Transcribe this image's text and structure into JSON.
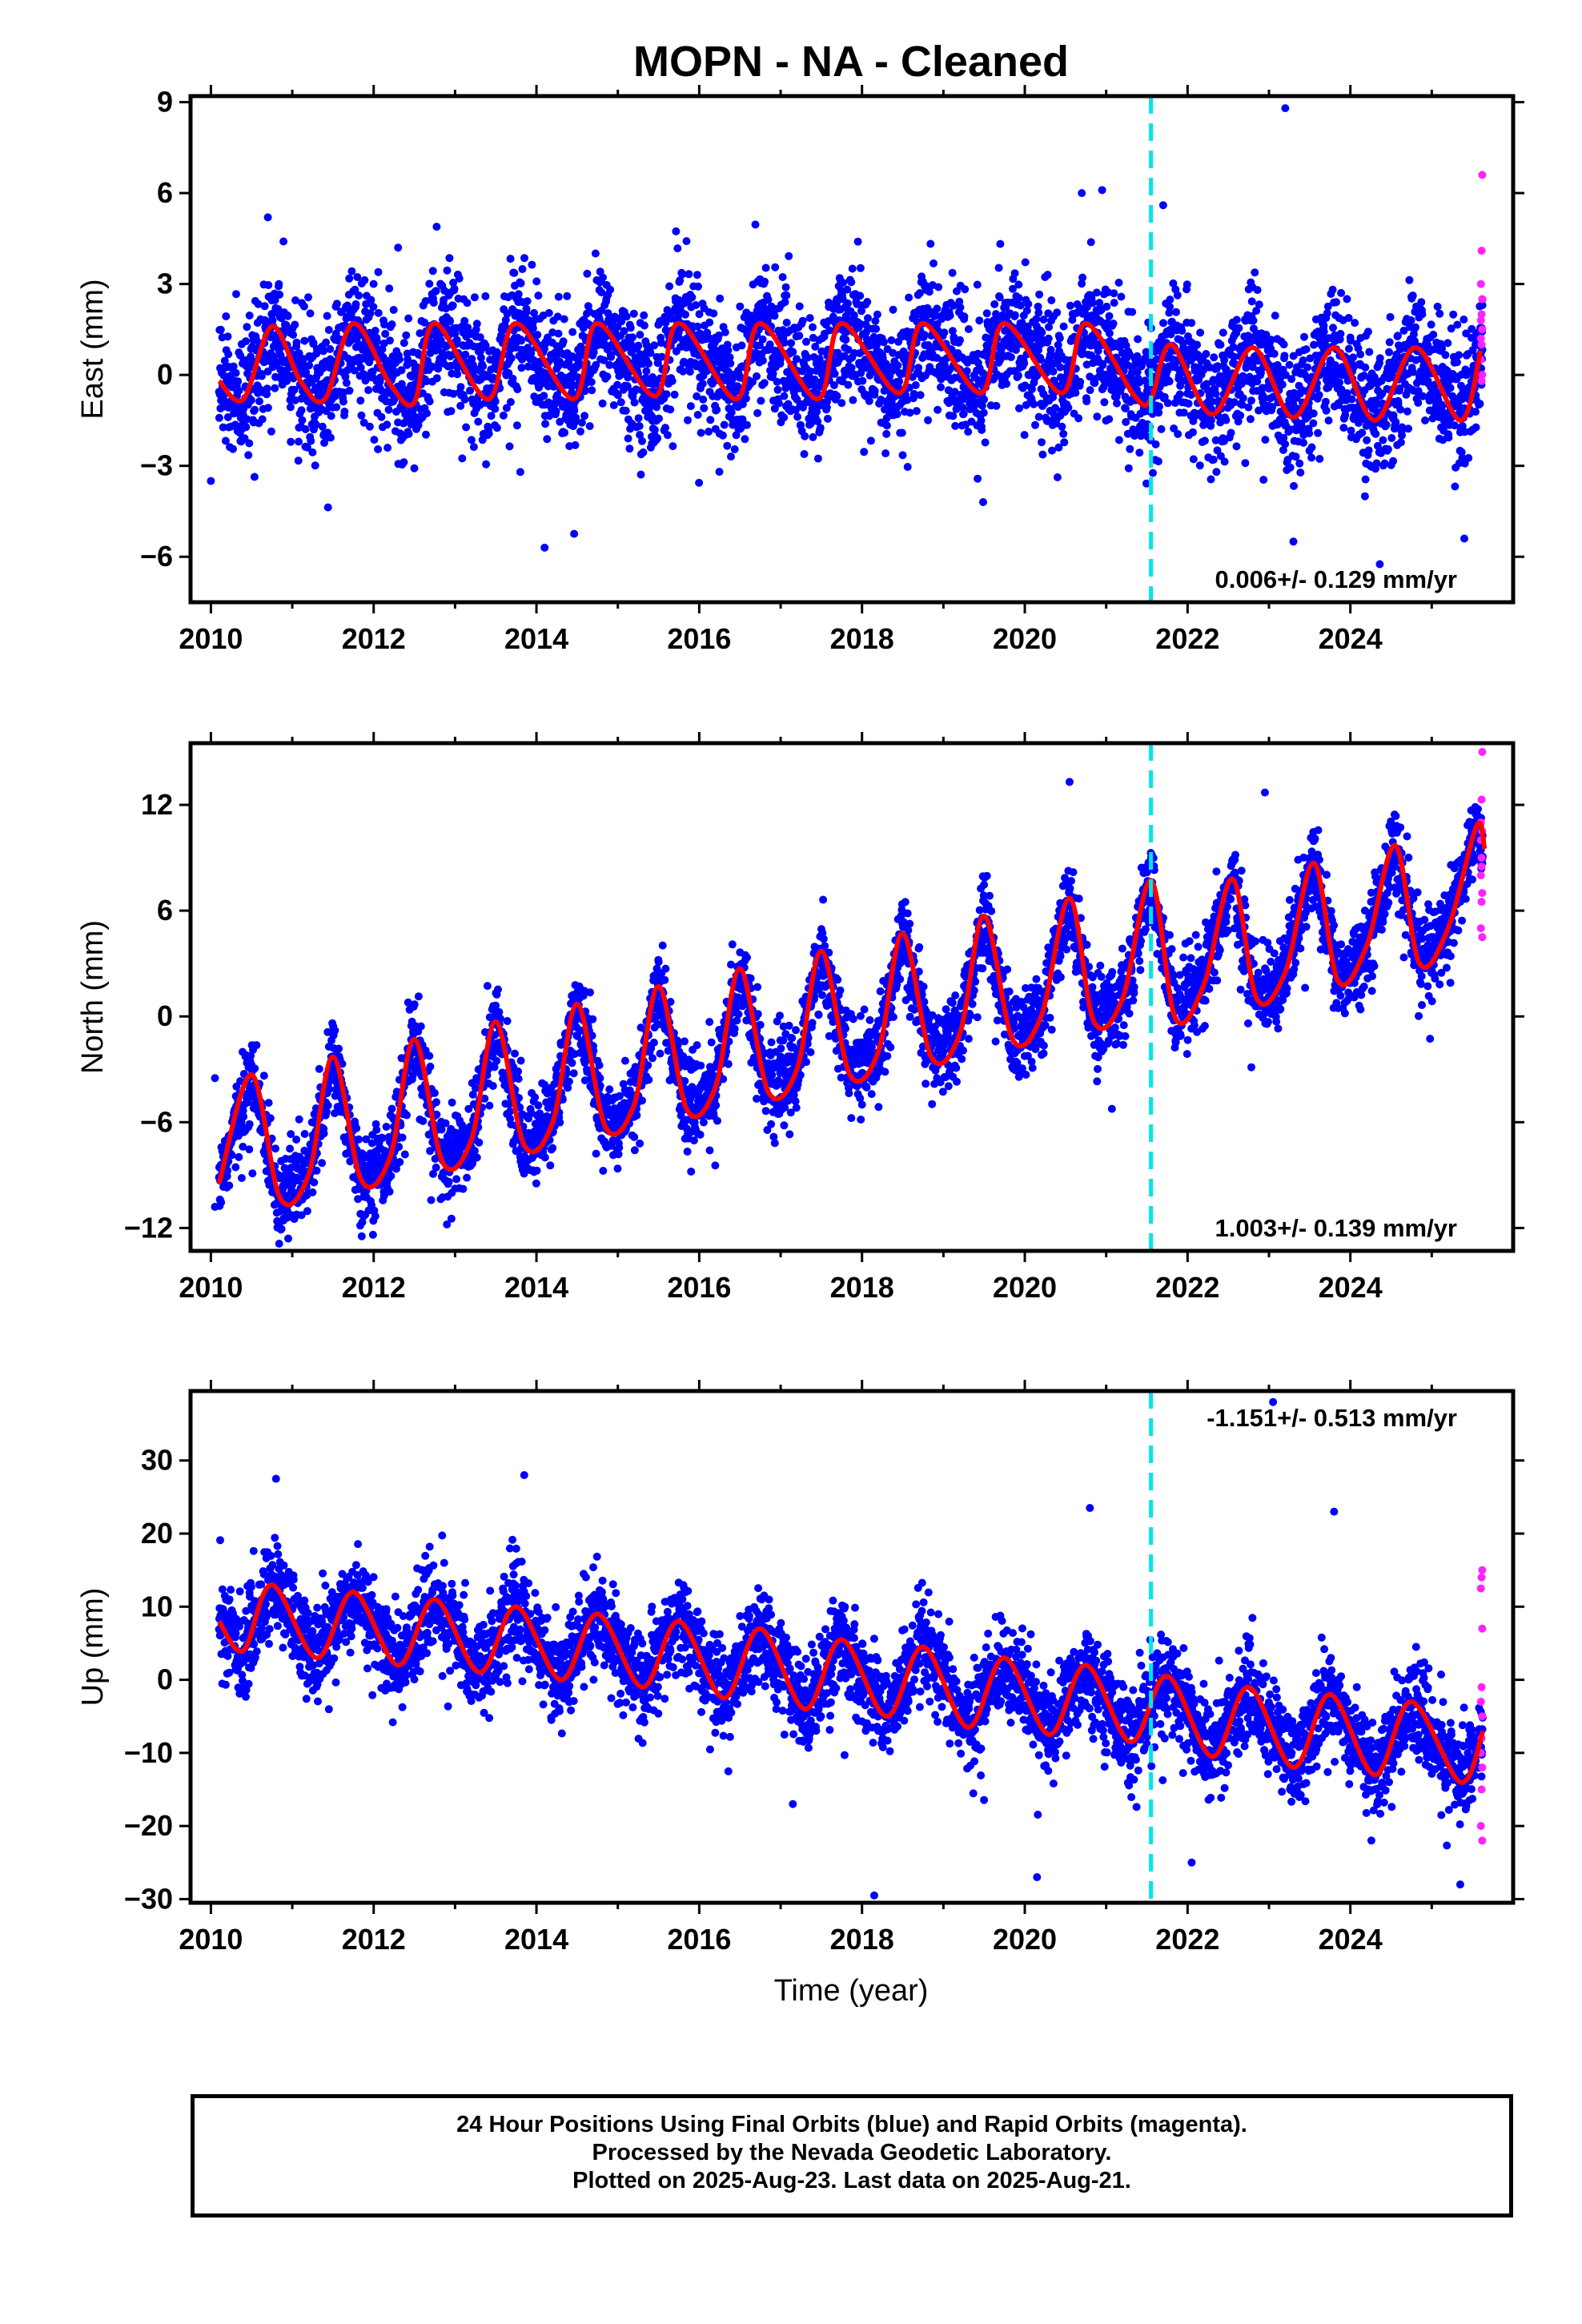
{
  "title": "MOPN  - NA - Cleaned",
  "xlabel": "Time (year)",
  "footer": {
    "line1": "24 Hour Positions Using Final Orbits (blue) and Rapid Orbits (magenta).",
    "line2": "Processed by the Nevada Geodetic Laboratory.",
    "line3": "Plotted on 2025-Aug-23. Last data on 2025-Aug-21."
  },
  "colors": {
    "final": "#0000ff",
    "rapid": "#ff22ff",
    "model": "#ff0000",
    "event": "#00e5e5",
    "frame": "#000000"
  },
  "chart_data": [
    {
      "type": "scatter",
      "name": "east",
      "ylabel": "East (mm)",
      "xlim": [
        2009.75,
        2026.0
      ],
      "ylim": [
        -7.5,
        9.2
      ],
      "xticks": [
        2010,
        2012,
        2014,
        2016,
        2018,
        2020,
        2022,
        2024
      ],
      "yticks": [
        -6,
        -3,
        0,
        3,
        6,
        9
      ],
      "event_line": 2021.55,
      "rate_label": "0.006+/- 0.129 mm/yr",
      "rate_label_position": "bottom-right",
      "grid": false,
      "data_span": [
        2010.1,
        2025.63
      ],
      "rapid_span": [
        2025.45,
        2025.63
      ],
      "model": {
        "knots": [
          [
            2010.1,
            -0.2
          ],
          [
            2010.4,
            -0.8
          ],
          [
            2010.75,
            1.6
          ],
          [
            2011.1,
            -0.2
          ],
          [
            2011.4,
            -0.8
          ],
          [
            2011.75,
            1.7
          ],
          [
            2012.2,
            -0.3
          ],
          [
            2012.5,
            -0.9
          ],
          [
            2012.75,
            1.7
          ],
          [
            2013.4,
            -0.8
          ],
          [
            2013.75,
            1.7
          ],
          [
            2014.45,
            -0.8
          ],
          [
            2014.75,
            1.7
          ],
          [
            2015.45,
            -0.7
          ],
          [
            2015.75,
            1.7
          ],
          [
            2016.45,
            -0.8
          ],
          [
            2016.75,
            1.7
          ],
          [
            2017.45,
            -0.8
          ],
          [
            2017.75,
            1.7
          ],
          [
            2018.45,
            -0.6
          ],
          [
            2018.75,
            1.7
          ],
          [
            2019.45,
            -0.6
          ],
          [
            2019.75,
            1.7
          ],
          [
            2020.45,
            -0.6
          ],
          [
            2020.75,
            1.7
          ],
          [
            2021.35,
            -0.7
          ],
          [
            2021.55,
            -0.8
          ],
          [
            2021.8,
            1.0
          ],
          [
            2022.3,
            -1.3
          ],
          [
            2022.8,
            0.9
          ],
          [
            2023.3,
            -1.4
          ],
          [
            2023.8,
            0.9
          ],
          [
            2024.3,
            -1.5
          ],
          [
            2024.8,
            0.9
          ],
          [
            2025.35,
            -1.5
          ],
          [
            2025.6,
            0.8
          ]
        ]
      },
      "trend": [
        [
          2010,
          -0.3
        ],
        [
          2018.5,
          0.3
        ],
        [
          2020.5,
          1.5
        ],
        [
          2021.5,
          0.8
        ],
        [
          2022.5,
          -0.2
        ],
        [
          2025.6,
          -0.8
        ]
      ],
      "amplitude": 1.2,
      "scatter_sd": 1.4,
      "rapid_values": [
        6.6,
        4.1,
        3.0,
        2.5,
        2.0,
        1.8,
        1.5,
        1.0,
        0.5,
        0.0,
        -0.2,
        1.2
      ],
      "outliers": [
        [
          2020.7,
          6.0
        ],
        [
          2020.95,
          6.1
        ],
        [
          2021.7,
          5.6
        ],
        [
          2010.7,
          5.2
        ],
        [
          2010.0,
          -3.5
        ],
        [
          2014.1,
          -5.7
        ],
        [
          2023.2,
          8.8
        ],
        [
          2023.3,
          -5.5
        ],
        [
          2025.4,
          -5.4
        ],
        [
          2012.3,
          4.2
        ]
      ]
    },
    {
      "type": "scatter",
      "name": "north",
      "ylabel": "North (mm)",
      "xlim": [
        2009.75,
        2026.0
      ],
      "ylim": [
        -13.3,
        15.5
      ],
      "xticks": [
        2010,
        2012,
        2014,
        2016,
        2018,
        2020,
        2022,
        2024
      ],
      "yticks": [
        -12,
        -6,
        0,
        6,
        12
      ],
      "event_line": 2021.55,
      "rate_label": "1.003+/- 0.139 mm/yr",
      "rate_label_position": "bottom-right",
      "grid": false,
      "data_span": [
        2010.1,
        2025.63
      ],
      "rapid_span": [
        2025.45,
        2025.63
      ],
      "model": {
        "knots": [
          [
            2010.1,
            -9.5
          ],
          [
            2010.5,
            -3.3
          ],
          [
            2010.85,
            -10.3
          ],
          [
            2011.2,
            -9.0
          ],
          [
            2011.5,
            -2.3
          ],
          [
            2011.85,
            -9.3
          ],
          [
            2012.2,
            -8.0
          ],
          [
            2012.5,
            -1.3
          ],
          [
            2012.85,
            -8.3
          ],
          [
            2013.2,
            -7.0
          ],
          [
            2013.5,
            -0.3
          ],
          [
            2013.85,
            -7.3
          ],
          [
            2014.2,
            -6.0
          ],
          [
            2014.5,
            0.7
          ],
          [
            2014.85,
            -6.3
          ],
          [
            2015.2,
            -5.0
          ],
          [
            2015.5,
            1.7
          ],
          [
            2015.85,
            -5.3
          ],
          [
            2016.2,
            -4.0
          ],
          [
            2016.5,
            2.7
          ],
          [
            2016.85,
            -4.3
          ],
          [
            2017.2,
            -3.0
          ],
          [
            2017.5,
            3.7
          ],
          [
            2017.85,
            -3.3
          ],
          [
            2018.2,
            -2.0
          ],
          [
            2018.5,
            4.7
          ],
          [
            2018.85,
            -2.3
          ],
          [
            2019.2,
            -1.0
          ],
          [
            2019.5,
            5.7
          ],
          [
            2019.85,
            -1.3
          ],
          [
            2020.2,
            0.0
          ],
          [
            2020.55,
            6.7
          ],
          [
            2020.85,
            -0.3
          ],
          [
            2021.2,
            1.0
          ],
          [
            2021.55,
            7.7
          ],
          [
            2021.85,
            -0.1
          ],
          [
            2022.2,
            1.8
          ],
          [
            2022.55,
            7.8
          ],
          [
            2022.85,
            1.0
          ],
          [
            2023.2,
            2.5
          ],
          [
            2023.55,
            8.7
          ],
          [
            2023.85,
            2.0
          ],
          [
            2024.2,
            4.0
          ],
          [
            2024.55,
            9.7
          ],
          [
            2024.85,
            3.0
          ],
          [
            2025.2,
            5.0
          ],
          [
            2025.55,
            10.8
          ],
          [
            2025.65,
            9.5
          ]
        ]
      },
      "trend": [
        [
          2010,
          -6.5
        ],
        [
          2025.6,
          7.0
        ]
      ],
      "amplitude": 3.5,
      "scatter_sd": 1.6,
      "rapid_values": [
        15.0,
        12.3,
        11.0,
        10.5,
        9.0,
        8.0,
        7.0,
        6.5,
        5.0,
        4.5,
        8.5,
        10.0
      ],
      "outliers": [
        [
          2020.55,
          13.3
        ],
        [
          2022.95,
          12.7
        ],
        [
          2010.05,
          -3.5
        ],
        [
          2010.05,
          -10.8
        ],
        [
          2010.95,
          -12.6
        ],
        [
          2012.9,
          -11.8
        ],
        [
          2015.9,
          -8.8
        ]
      ]
    },
    {
      "type": "scatter",
      "name": "up",
      "ylabel": "Up (mm)",
      "xlim": [
        2009.75,
        2026.0
      ],
      "ylim": [
        -30.5,
        39.5
      ],
      "xticks": [
        2010,
        2012,
        2014,
        2016,
        2018,
        2020,
        2022,
        2024
      ],
      "yticks": [
        -30,
        -20,
        -10,
        0,
        10,
        20,
        30
      ],
      "event_line": 2021.55,
      "rate_label": "-1.151+/- 0.513 mm/yr",
      "rate_label_position": "top-right",
      "grid": false,
      "data_span": [
        2010.1,
        2025.63
      ],
      "rapid_span": [
        2025.45,
        2025.63
      ],
      "model": {
        "knots": [
          [
            2010.1,
            8.0
          ],
          [
            2010.4,
            4.0
          ],
          [
            2010.75,
            13.0
          ],
          [
            2011.3,
            3.0
          ],
          [
            2011.75,
            12.0
          ],
          [
            2012.3,
            2.0
          ],
          [
            2012.75,
            11.0
          ],
          [
            2013.3,
            1.0
          ],
          [
            2013.75,
            10.0
          ],
          [
            2014.3,
            0.0
          ],
          [
            2014.75,
            9.0
          ],
          [
            2015.3,
            -1.0
          ],
          [
            2015.75,
            8.0
          ],
          [
            2016.3,
            -2.5
          ],
          [
            2016.75,
            7.0
          ],
          [
            2017.3,
            -4.0
          ],
          [
            2017.75,
            5.5
          ],
          [
            2018.3,
            -5.0
          ],
          [
            2018.75,
            4.5
          ],
          [
            2019.3,
            -6.5
          ],
          [
            2019.75,
            3.0
          ],
          [
            2020.3,
            -7.5
          ],
          [
            2020.75,
            2.0
          ],
          [
            2021.3,
            -8.5
          ],
          [
            2021.75,
            0.5
          ],
          [
            2022.3,
            -10.5
          ],
          [
            2022.75,
            -1.0
          ],
          [
            2023.3,
            -12.0
          ],
          [
            2023.75,
            -2.0
          ],
          [
            2024.3,
            -13.0
          ],
          [
            2024.75,
            -3.0
          ],
          [
            2025.35,
            -14.0
          ],
          [
            2025.63,
            -7.0
          ]
        ]
      },
      "trend": [
        [
          2010,
          8.0
        ],
        [
          2025.6,
          -9.0
        ]
      ],
      "amplitude": 5.0,
      "scatter_sd": 4.2,
      "rapid_values": [
        15.0,
        14.0,
        12.5,
        7.0,
        -1.0,
        -3.0,
        -5.0,
        -8.0,
        -10.0,
        -12.0,
        -15.0,
        -20.0,
        -22.0
      ],
      "outliers": [
        [
          2010.8,
          27.5
        ],
        [
          2013.85,
          28.0
        ],
        [
          2020.8,
          23.5
        ],
        [
          2023.8,
          23.0
        ],
        [
          2018.15,
          -29.5
        ],
        [
          2020.15,
          -27.0
        ],
        [
          2022.05,
          -25.0
        ],
        [
          2025.35,
          -28.0
        ],
        [
          2023.05,
          38.0
        ],
        [
          2017.15,
          -17.0
        ]
      ]
    }
  ]
}
